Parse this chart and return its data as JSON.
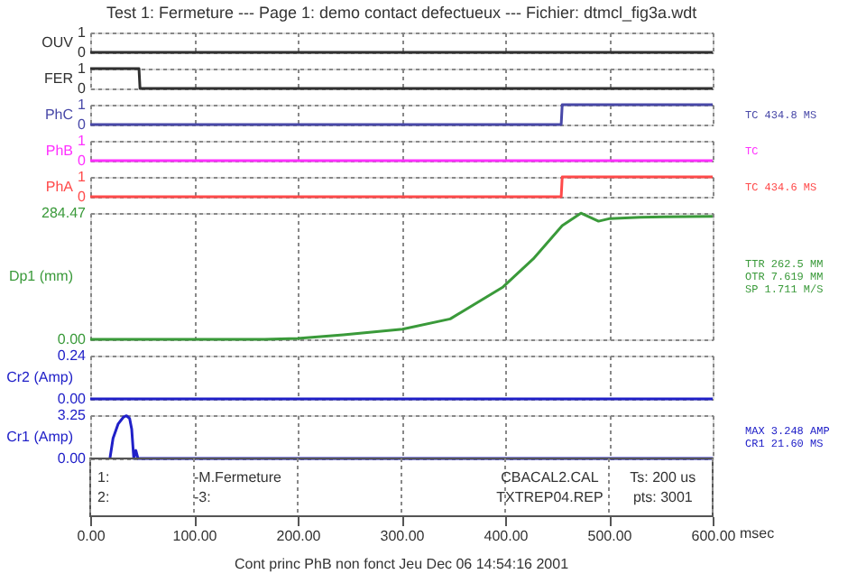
{
  "chart_data": [
    {
      "type": "step",
      "title": "Test 1: Fermeture --- Page 1: demo contact defectueux --- Fichier: dtmcl_fig3a.wdt",
      "ylabel": "OUV",
      "xlim": [
        0,
        600
      ],
      "xticks": [
        0,
        100,
        200,
        300,
        400,
        500,
        600
      ],
      "ylim": [
        0,
        1
      ],
      "yticks": [
        0,
        1
      ],
      "tick_labels": "y",
      "grid": true,
      "series": [
        {
          "color": "#303030",
          "x": [
            0,
            600
          ],
          "values": [
            0,
            0
          ]
        }
      ]
    },
    {
      "type": "line",
      "ylabel": "FER",
      "xlim": [
        0,
        600
      ],
      "xticks": [
        0,
        100,
        200,
        300,
        400,
        500,
        600
      ],
      "ylim": [
        0,
        1
      ],
      "yticks": [
        0,
        1
      ],
      "tick_labels": "y",
      "grid": true,
      "series": [
        {
          "color": "#303030",
          "x": [
            0,
            47,
            48,
            600
          ],
          "values": [
            1,
            1,
            0,
            0
          ]
        }
      ]
    },
    {
      "type": "line",
      "ylabel": "PhC",
      "xlim": [
        0,
        600
      ],
      "xticks": [
        0,
        100,
        200,
        300,
        400,
        500,
        600
      ],
      "ylim": [
        0,
        1
      ],
      "yticks": [
        0,
        1
      ],
      "tick_labels": "y",
      "grid": true,
      "annotations": [
        "TC    434.8 MS"
      ],
      "series": [
        {
          "color": "#4848a8",
          "x": [
            0,
            454,
            455,
            600
          ],
          "values": [
            0,
            0,
            1,
            1
          ]
        }
      ]
    },
    {
      "type": "line",
      "ylabel": "PhB",
      "xlim": [
        0,
        600
      ],
      "xticks": [
        0,
        100,
        200,
        300,
        400,
        500,
        600
      ],
      "ylim": [
        0,
        1
      ],
      "yticks": [
        0,
        1
      ],
      "tick_labels": "y",
      "grid": true,
      "annotations": [
        "TC"
      ],
      "series": [
        {
          "color": "#ff30ff",
          "x": [
            0,
            600
          ],
          "values": [
            0,
            0
          ]
        }
      ]
    },
    {
      "type": "line",
      "ylabel": "PhA",
      "xlim": [
        0,
        600
      ],
      "xticks": [
        0,
        100,
        200,
        300,
        400,
        500,
        600
      ],
      "ylim": [
        0,
        1
      ],
      "yticks": [
        0,
        1
      ],
      "tick_labels": "y",
      "grid": true,
      "annotations": [
        "TC    434.6 MS"
      ],
      "series": [
        {
          "color": "#ff4a4a",
          "x": [
            0,
            454,
            455,
            600
          ],
          "values": [
            0,
            0,
            1,
            1
          ]
        }
      ]
    },
    {
      "type": "line",
      "ylabel": "Dp1 (mm)",
      "xlim": [
        0,
        600
      ],
      "xticks": [
        0,
        100,
        200,
        300,
        400,
        500,
        600
      ],
      "ylim": [
        0,
        284.47
      ],
      "yticks": [
        {
          "value": 0,
          "label": "0.00"
        },
        {
          "value": 284.47,
          "label": "284.47"
        }
      ],
      "tick_labels": "y",
      "grid": true,
      "annotations": [
        "TTR   262.5 MM",
        "OTR   7.619 MM",
        "SP    1.711 M/S"
      ],
      "series": [
        {
          "color": "#3a9a3a",
          "x": [
            0,
            168,
            200,
            244,
            301,
            347,
            398,
            427,
            455,
            473,
            490,
            501,
            530,
            553,
            600
          ],
          "values": [
            0,
            0,
            2,
            10,
            23,
            46,
            118,
            181,
            256,
            284,
            266,
            272,
            275,
            276,
            277
          ]
        }
      ]
    },
    {
      "type": "line",
      "ylabel": "Cr2 (Amp)",
      "xlim": [
        0,
        600
      ],
      "xticks": [
        0,
        100,
        200,
        300,
        400,
        500,
        600
      ],
      "ylim": [
        0,
        0.24
      ],
      "yticks": [
        {
          "value": 0,
          "label": "0.00"
        },
        {
          "value": 0.24,
          "label": "0.24"
        }
      ],
      "tick_labels": "y",
      "grid": true,
      "series": [
        {
          "color": "#2020c8",
          "x": [
            0,
            600
          ],
          "values": [
            0,
            0
          ]
        }
      ]
    },
    {
      "type": "line",
      "ylabel": "Cr1 (Amp)",
      "xlabel": "msec",
      "xlim": [
        0,
        600
      ],
      "xticks": [
        {
          "value": 0,
          "label": "0.00"
        },
        {
          "value": 100,
          "label": "100.00"
        },
        {
          "value": 200,
          "label": "200.00"
        },
        {
          "value": 300,
          "label": "300.00"
        },
        {
          "value": 400,
          "label": "400.00"
        },
        {
          "value": 500,
          "label": "500.00"
        },
        {
          "value": 600,
          "label": "600.00"
        }
      ],
      "ylim": [
        0,
        3.25
      ],
      "yticks": [
        {
          "value": 0,
          "label": "0.00"
        },
        {
          "value": 3.25,
          "label": "3.25"
        }
      ],
      "grid": true,
      "annotations": [
        "MAX   3.248 AMP",
        "CR1   21.60 MS",
        "1:",
        "-M.Fermeture",
        "CBACAL2.CAL",
        "Ts: 200 us",
        "2:",
        "-3:",
        "TXTREP04.REP",
        "pts: 3001",
        "Cont princ PhB non fonct   Jeu Dec 06 14:54:16 2001"
      ],
      "series": [
        {
          "color": "#2020c8",
          "x": [
            19,
            22,
            27,
            32,
            35,
            38,
            40,
            42,
            44,
            46,
            600
          ],
          "values": [
            0,
            1.5,
            2.6,
            3.1,
            3.2,
            3.0,
            2.2,
            0,
            0.6,
            0,
            0
          ]
        }
      ]
    }
  ]
}
